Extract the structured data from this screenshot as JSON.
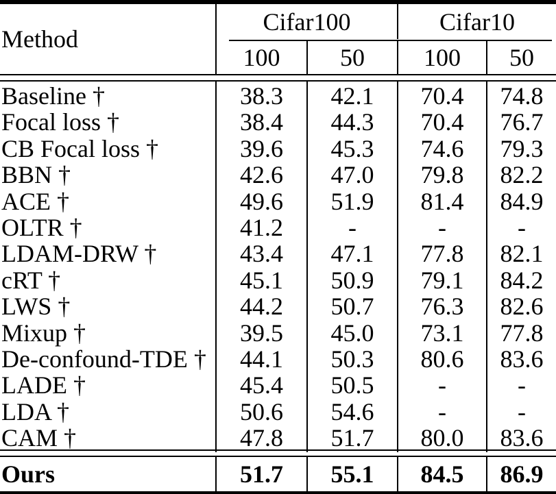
{
  "table": {
    "method_header": "Method",
    "groups": [
      {
        "label": "Cifar100",
        "sub": [
          "100",
          "50"
        ]
      },
      {
        "label": "Cifar10",
        "sub": [
          "100",
          "50"
        ]
      }
    ],
    "rows": [
      {
        "method": "Baseline †",
        "values": [
          "38.3",
          "42.1",
          "70.4",
          "74.8"
        ]
      },
      {
        "method": "Focal loss †",
        "values": [
          "38.4",
          "44.3",
          "70.4",
          "76.7"
        ]
      },
      {
        "method": "CB Focal loss †",
        "values": [
          "39.6",
          "45.3",
          "74.6",
          "79.3"
        ]
      },
      {
        "method": "BBN †",
        "values": [
          "42.6",
          "47.0",
          "79.8",
          "82.2"
        ]
      },
      {
        "method": "ACE †",
        "values": [
          "49.6",
          "51.9",
          "81.4",
          "84.9"
        ]
      },
      {
        "method": "OLTR †",
        "values": [
          "41.2",
          "-",
          "-",
          "-"
        ]
      },
      {
        "method": "LDAM-DRW †",
        "values": [
          "43.4",
          "47.1",
          "77.8",
          "82.1"
        ]
      },
      {
        "method": "cRT †",
        "values": [
          "45.1",
          "50.9",
          "79.1",
          "84.2"
        ]
      },
      {
        "method": "LWS †",
        "values": [
          "44.2",
          "50.7",
          "76.3",
          "82.6"
        ]
      },
      {
        "method": "Mixup †",
        "values": [
          "39.5",
          "45.0",
          "73.1",
          "77.8"
        ]
      },
      {
        "method": "De-confound-TDE †",
        "values": [
          "44.1",
          "50.3",
          "80.6",
          "83.6"
        ]
      },
      {
        "method": "LADE †",
        "values": [
          "45.4",
          "50.5",
          "-",
          "-"
        ]
      },
      {
        "method": "LDA †",
        "values": [
          "50.6",
          "54.6",
          "-",
          "-"
        ]
      },
      {
        "method": "CAM †",
        "values": [
          "47.8",
          "51.7",
          "80.0",
          "83.6"
        ]
      }
    ],
    "ours": {
      "method": "Ours",
      "values": [
        "51.7",
        "55.1",
        "84.5",
        "86.9"
      ]
    },
    "colors": {
      "text": "#000000",
      "background": "#ffffff",
      "rule": "#000000"
    }
  }
}
